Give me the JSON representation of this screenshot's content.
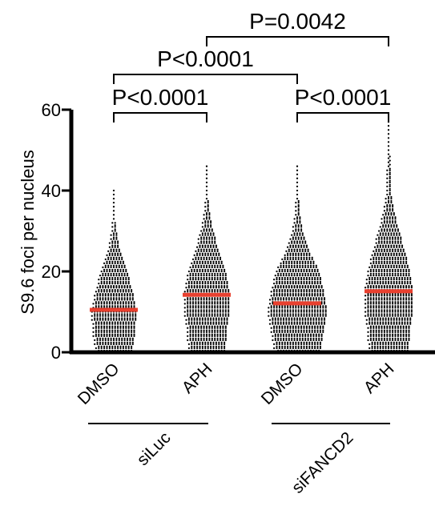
{
  "chart_data": {
    "type": "scatter",
    "subtype": "dot-plot",
    "ylabel": "S9.6 foci per nucleus",
    "ylim": [
      0,
      60
    ],
    "yticks": [
      0,
      20,
      40,
      60
    ],
    "categories": [
      "DMSO",
      "APH",
      "DMSO",
      "APH"
    ],
    "groups": [
      {
        "label": "siLuc",
        "categories": [
          0,
          1
        ]
      },
      {
        "label": "siFANCD2",
        "categories": [
          2,
          3
        ]
      }
    ],
    "series": [
      {
        "category": "DMSO",
        "group": "siLuc",
        "mean": 10.5,
        "max": 40,
        "profile": [
          [
            0,
            14
          ],
          [
            5,
            16
          ],
          [
            10,
            17
          ],
          [
            15,
            14
          ],
          [
            20,
            10
          ],
          [
            25,
            5
          ],
          [
            30,
            2
          ],
          [
            35,
            1
          ],
          [
            40,
            1
          ]
        ]
      },
      {
        "category": "APH",
        "group": "siLuc",
        "mean": 14.2,
        "max": 46,
        "profile": [
          [
            0,
            14
          ],
          [
            5,
            15
          ],
          [
            10,
            17
          ],
          [
            15,
            17
          ],
          [
            20,
            14
          ],
          [
            25,
            9
          ],
          [
            30,
            5
          ],
          [
            35,
            2
          ],
          [
            40,
            1
          ],
          [
            46,
            1
          ]
        ]
      },
      {
        "category": "DMSO",
        "group": "siFANCD2",
        "mean": 12.1,
        "max": 46,
        "profile": [
          [
            0,
            17
          ],
          [
            5,
            20
          ],
          [
            10,
            22
          ],
          [
            15,
            20
          ],
          [
            20,
            16
          ],
          [
            25,
            9
          ],
          [
            30,
            4
          ],
          [
            35,
            2
          ],
          [
            40,
            1
          ],
          [
            46,
            1
          ]
        ]
      },
      {
        "category": "APH",
        "group": "siFANCD2",
        "mean": 15.1,
        "max": 57,
        "profile": [
          [
            0,
            15
          ],
          [
            5,
            16
          ],
          [
            10,
            18
          ],
          [
            15,
            18
          ],
          [
            20,
            16
          ],
          [
            25,
            12
          ],
          [
            30,
            8
          ],
          [
            35,
            4
          ],
          [
            40,
            2
          ],
          [
            50,
            1
          ],
          [
            57,
            1
          ]
        ]
      }
    ],
    "mean_color": "#e8402f",
    "point_color": "#000000",
    "comparisons": [
      {
        "from": 0,
        "to": 1,
        "label": "P<0.0001"
      },
      {
        "from": 2,
        "to": 3,
        "label": "P<0.0001"
      },
      {
        "from": 0,
        "to": 2,
        "label": "P<0.0001"
      },
      {
        "from": 1,
        "to": 3,
        "label": "P=0.0042"
      }
    ]
  }
}
